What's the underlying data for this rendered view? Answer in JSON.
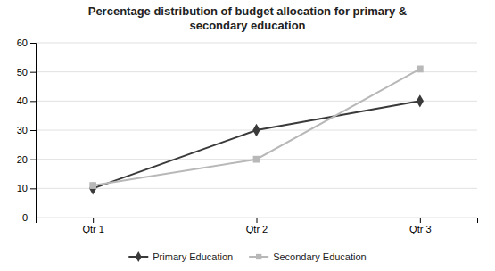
{
  "chart_data": {
    "type": "line",
    "title": "Percentage distribution of budget allocation for primary &\nsecondary education",
    "categories": [
      "Qtr 1",
      "Qtr 2",
      "Qtr 3"
    ],
    "series": [
      {
        "name": "Primary Education",
        "color": "#3a3a3a",
        "marker": "diamond",
        "values": [
          10,
          30,
          40
        ]
      },
      {
        "name": "Secondary Education",
        "color": "#b8b8b8",
        "marker": "square",
        "values": [
          11,
          20,
          51
        ]
      }
    ],
    "ylim": [
      0,
      60
    ],
    "yticks": [
      0,
      10,
      20,
      30,
      40,
      50,
      60
    ],
    "grid": true,
    "legend": "bottom"
  }
}
